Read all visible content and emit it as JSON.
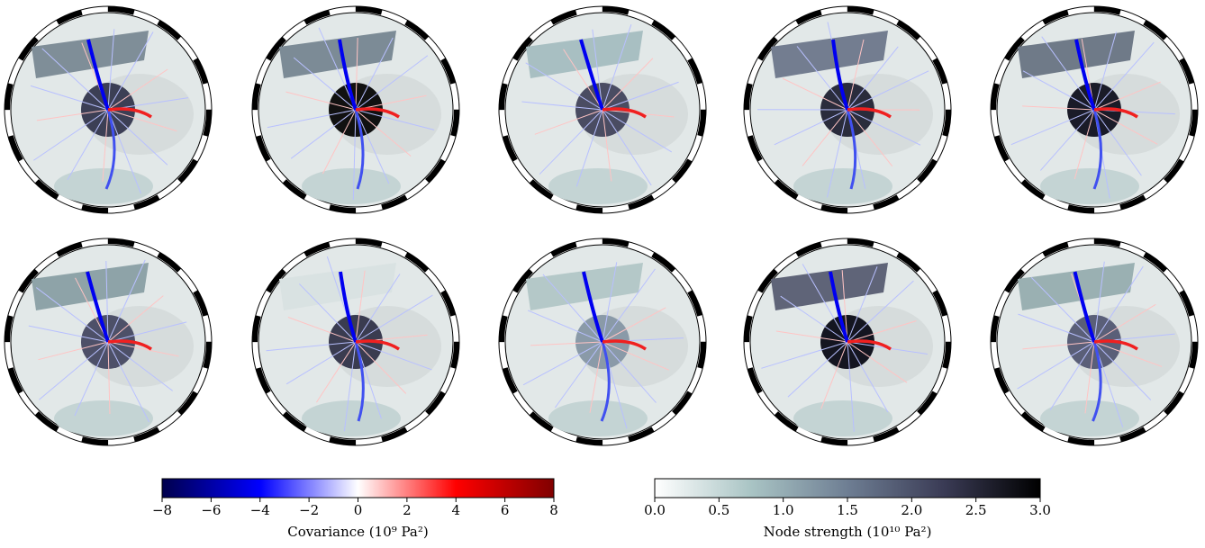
{
  "chart_data": [
    {
      "type": "colorbar",
      "label": "Covariance (10⁹ Pa²)",
      "colors": [
        "#00004c",
        "#0000ff",
        "#ffffff",
        "#ff0000",
        "#800000"
      ],
      "xlim": [
        -8,
        8
      ],
      "xticks": [
        {
          "value": -8,
          "label": "−8"
        },
        {
          "value": -6,
          "label": "−6"
        },
        {
          "value": -4,
          "label": "−4"
        },
        {
          "value": -2,
          "label": "−2"
        },
        0,
        2,
        4,
        6,
        8
      ]
    },
    {
      "type": "colorbar",
      "label": "Node strength (10¹⁰ Pa²)",
      "colors": [
        "#ffffff",
        "#a9c4c4",
        "#6e7e93",
        "#3a3b55",
        "#000000"
      ],
      "xlim": [
        0,
        3
      ],
      "xticks": [
        {
          "value": 0,
          "label": "0.0"
        },
        0.5,
        {
          "value": 1,
          "label": "1.0"
        },
        1.5,
        {
          "value": 2,
          "label": "2.0"
        },
        2.5,
        {
          "value": 3,
          "label": "3.0"
        }
      ]
    }
  ]
}
